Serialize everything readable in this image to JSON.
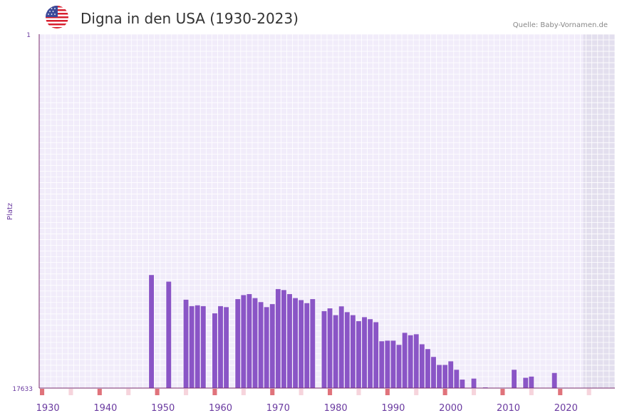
{
  "header": {
    "title": "Digna in den USA (1930-2023)",
    "source": "Quelle: Baby-Vornamen.de"
  },
  "flag_icon": "us-flag-icon",
  "colors": {
    "bar": "#8a55c6",
    "plot_bg": "#f1ecfa",
    "grid": "#ffffff",
    "future_bg": "#e3dfee",
    "axis": "#7a2d6e",
    "tick_label": "#6a3aa0",
    "decade_marker": "#e0737b",
    "half_marker": "#f6d4dc"
  },
  "chart_data": {
    "type": "bar",
    "title": "Digna in den USA (1930-2023)",
    "ylabel": "Platz",
    "xlabel": "",
    "y_reversed": true,
    "ylim": [
      1,
      17633
    ],
    "y_tick_labels": [
      "1",
      "17633"
    ],
    "x_tick_labels": [
      "1930",
      "1940",
      "1950",
      "1960",
      "1970",
      "1980",
      "1990",
      "2000",
      "2010",
      "2020"
    ],
    "xlim": [
      1929,
      2029
    ],
    "data_end_year": 2023,
    "years": [
      1948,
      1951,
      1954,
      1955,
      1956,
      1957,
      1959,
      1960,
      1961,
      1963,
      1964,
      1965,
      1966,
      1967,
      1968,
      1969,
      1970,
      1971,
      1972,
      1973,
      1974,
      1975,
      1976,
      1978,
      1979,
      1980,
      1981,
      1982,
      1983,
      1984,
      1985,
      1986,
      1987,
      1988,
      1989,
      1990,
      1991,
      1992,
      1993,
      1994,
      1995,
      1996,
      1997,
      1998,
      1999,
      2000,
      2001,
      2002,
      2004,
      2006,
      2011,
      2013,
      2014,
      2018
    ],
    "ranks": [
      12000,
      12330,
      13230,
      13550,
      13510,
      13550,
      13910,
      13550,
      13600,
      13200,
      13000,
      12950,
      13150,
      13350,
      13600,
      13450,
      12700,
      12750,
      12950,
      13150,
      13250,
      13400,
      13200,
      13800,
      13660,
      14000,
      13560,
      13850,
      14000,
      14300,
      14100,
      14200,
      14350,
      15300,
      15270,
      15270,
      15480,
      14880,
      15000,
      14950,
      15450,
      15690,
      16080,
      16480,
      16480,
      16300,
      16720,
      17210,
      17160,
      17600,
      16720,
      17120,
      17060,
      16880
    ]
  }
}
